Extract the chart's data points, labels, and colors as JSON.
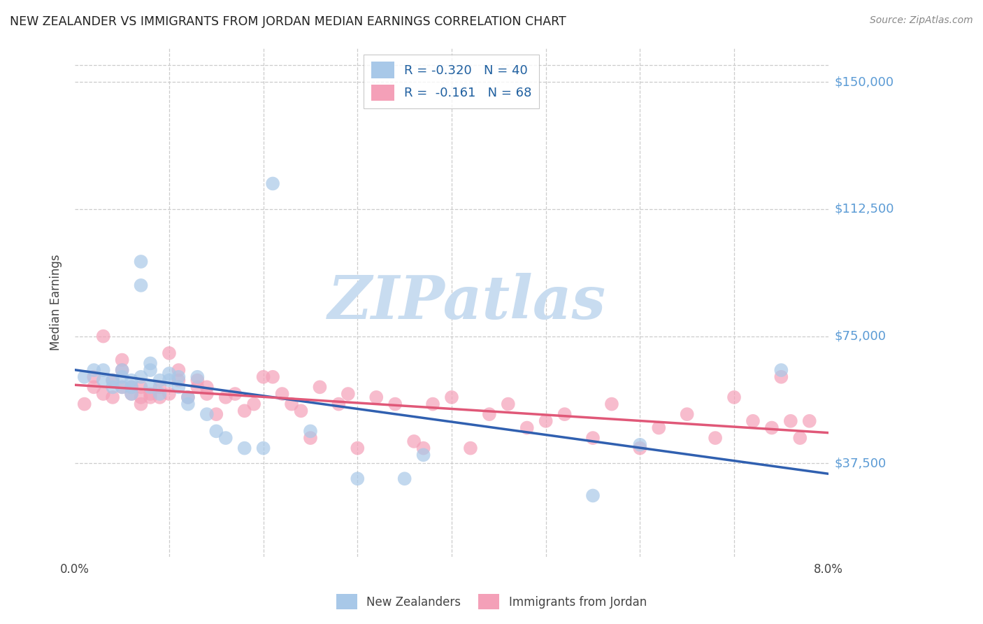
{
  "title": "NEW ZEALANDER VS IMMIGRANTS FROM JORDAN MEDIAN EARNINGS CORRELATION CHART",
  "source": "Source: ZipAtlas.com",
  "ylabel": "Median Earnings",
  "xmin": 0.0,
  "xmax": 0.08,
  "ymin": 10000,
  "ymax": 160000,
  "ytick_vals": [
    37500,
    75000,
    112500,
    150000
  ],
  "ytick_labels": [
    "$37,500",
    "$75,000",
    "$112,500",
    "$150,000"
  ],
  "color_blue": "#A8C8E8",
  "color_pink": "#F4A0B8",
  "color_blue_line": "#3060B0",
  "color_pink_line": "#E05878",
  "color_axis_label": "#5B9BD5",
  "watermark_color": "#C8DCF0",
  "nz_x": [
    0.001,
    0.002,
    0.003,
    0.003,
    0.004,
    0.004,
    0.005,
    0.005,
    0.005,
    0.006,
    0.006,
    0.006,
    0.007,
    0.007,
    0.007,
    0.008,
    0.008,
    0.008,
    0.009,
    0.009,
    0.01,
    0.01,
    0.011,
    0.011,
    0.012,
    0.012,
    0.013,
    0.014,
    0.015,
    0.016,
    0.018,
    0.02,
    0.021,
    0.025,
    0.03,
    0.035,
    0.037,
    0.055,
    0.06,
    0.075
  ],
  "nz_y": [
    63000,
    65000,
    62000,
    65000,
    60000,
    62000,
    60000,
    63000,
    65000,
    58000,
    60000,
    62000,
    97000,
    90000,
    63000,
    60000,
    65000,
    67000,
    58000,
    62000,
    62000,
    64000,
    60000,
    63000,
    55000,
    57000,
    63000,
    52000,
    47000,
    45000,
    42000,
    42000,
    120000,
    47000,
    33000,
    33000,
    40000,
    28000,
    43000,
    65000
  ],
  "jordan_x": [
    0.001,
    0.002,
    0.002,
    0.003,
    0.003,
    0.004,
    0.004,
    0.005,
    0.005,
    0.005,
    0.006,
    0.006,
    0.007,
    0.007,
    0.007,
    0.008,
    0.008,
    0.009,
    0.009,
    0.01,
    0.01,
    0.011,
    0.011,
    0.012,
    0.013,
    0.013,
    0.014,
    0.014,
    0.015,
    0.016,
    0.017,
    0.018,
    0.019,
    0.02,
    0.021,
    0.022,
    0.023,
    0.024,
    0.025,
    0.026,
    0.028,
    0.029,
    0.03,
    0.032,
    0.034,
    0.036,
    0.037,
    0.038,
    0.04,
    0.042,
    0.044,
    0.046,
    0.048,
    0.05,
    0.052,
    0.055,
    0.057,
    0.06,
    0.062,
    0.065,
    0.068,
    0.07,
    0.072,
    0.074,
    0.075,
    0.076,
    0.077,
    0.078
  ],
  "jordan_y": [
    55000,
    60000,
    63000,
    58000,
    75000,
    57000,
    62000,
    65000,
    60000,
    68000,
    58000,
    60000,
    57000,
    60000,
    55000,
    58000,
    57000,
    60000,
    57000,
    58000,
    70000,
    62000,
    65000,
    57000,
    60000,
    62000,
    60000,
    58000,
    52000,
    57000,
    58000,
    53000,
    55000,
    63000,
    63000,
    58000,
    55000,
    53000,
    45000,
    60000,
    55000,
    58000,
    42000,
    57000,
    55000,
    44000,
    42000,
    55000,
    57000,
    42000,
    52000,
    55000,
    48000,
    50000,
    52000,
    45000,
    55000,
    42000,
    48000,
    52000,
    45000,
    57000,
    50000,
    48000,
    63000,
    50000,
    45000,
    50000
  ]
}
